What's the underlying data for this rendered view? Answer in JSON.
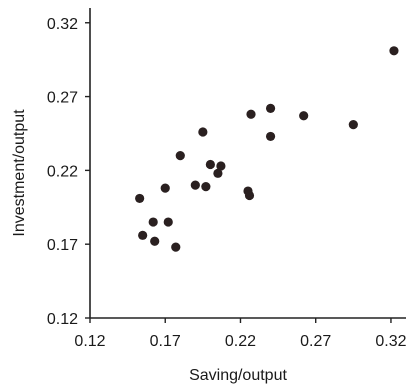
{
  "chart_data": {
    "type": "scatter",
    "xlabel": "Saving/output",
    "ylabel": "Investment/output",
    "xlim": [
      0.12,
      0.33
    ],
    "ylim": [
      0.12,
      0.33
    ],
    "x_ticks": [
      "0.12",
      "0.17",
      "0.22",
      "0.27",
      "0.32"
    ],
    "y_ticks": [
      "0.12",
      "0.17",
      "0.22",
      "0.27",
      "0.32"
    ],
    "grid": false,
    "marker_color": "#2a2020",
    "axis_color": "#222222",
    "points": [
      {
        "x": 0.153,
        "y": 0.201
      },
      {
        "x": 0.155,
        "y": 0.176
      },
      {
        "x": 0.162,
        "y": 0.185
      },
      {
        "x": 0.163,
        "y": 0.172
      },
      {
        "x": 0.17,
        "y": 0.208
      },
      {
        "x": 0.172,
        "y": 0.185
      },
      {
        "x": 0.177,
        "y": 0.168
      },
      {
        "x": 0.18,
        "y": 0.23
      },
      {
        "x": 0.19,
        "y": 0.21
      },
      {
        "x": 0.195,
        "y": 0.246
      },
      {
        "x": 0.197,
        "y": 0.209
      },
      {
        "x": 0.2,
        "y": 0.224
      },
      {
        "x": 0.205,
        "y": 0.218
      },
      {
        "x": 0.207,
        "y": 0.223
      },
      {
        "x": 0.225,
        "y": 0.206
      },
      {
        "x": 0.226,
        "y": 0.203
      },
      {
        "x": 0.227,
        "y": 0.258
      },
      {
        "x": 0.24,
        "y": 0.262
      },
      {
        "x": 0.24,
        "y": 0.243
      },
      {
        "x": 0.262,
        "y": 0.257
      },
      {
        "x": 0.295,
        "y": 0.251
      },
      {
        "x": 0.322,
        "y": 0.301
      }
    ]
  }
}
